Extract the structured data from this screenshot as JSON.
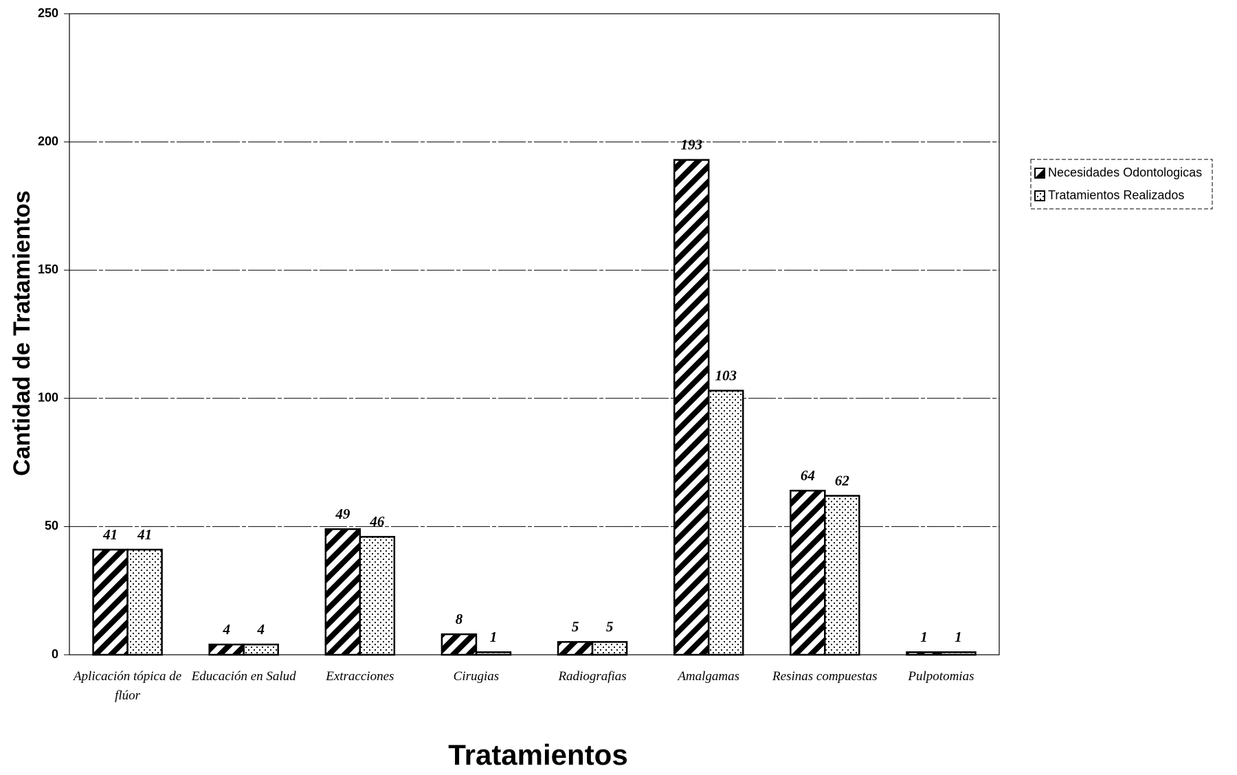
{
  "chart_data": {
    "type": "bar",
    "categories": [
      "Aplicación tópica de flúor",
      "Educación en Salud",
      "Extracciones",
      "Cirugias",
      "Radiografias",
      "Amalgamas",
      "Resinas compuestas",
      "Pulpotomias"
    ],
    "series": [
      {
        "name": "Necesidades Odontologicas",
        "color": "#000000",
        "pattern": "hatch",
        "values": [
          41,
          4,
          49,
          8,
          5,
          193,
          64,
          1
        ]
      },
      {
        "name": "Tratamientos Realizados",
        "color": "#000000",
        "pattern": "dots",
        "values": [
          41,
          4,
          46,
          1,
          5,
          103,
          62,
          1
        ]
      }
    ],
    "xlabel": "Tratamientos",
    "ylabel": "Cantidad de Tratamientos",
    "ylim": [
      0,
      250
    ],
    "yticks": [
      0,
      50,
      100,
      150,
      200,
      250
    ],
    "grid": true,
    "legend": "right"
  }
}
